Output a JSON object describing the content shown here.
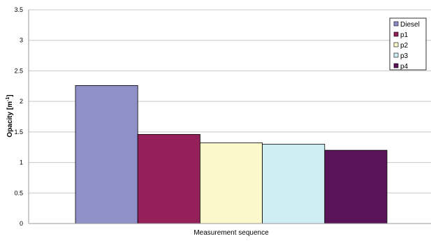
{
  "chart_data": {
    "type": "bar",
    "title": "",
    "xlabel": "Measurement sequence",
    "ylabel": {
      "main": "Opacity [m",
      "sup": "-1",
      "close": "]"
    },
    "ylim": [
      0,
      3.5
    ],
    "yticks": [
      "0",
      "0.5",
      "1",
      "1.5",
      "2",
      "2.5",
      "3",
      "3.5"
    ],
    "grid": true,
    "legend_position": "top-right",
    "series": [
      {
        "name": "Diesel",
        "values": [
          2.26
        ],
        "color": "#9090C8"
      },
      {
        "name": "p1",
        "values": [
          1.46
        ],
        "color": "#932059"
      },
      {
        "name": "p2",
        "values": [
          1.32
        ],
        "color": "#FBF8CC"
      },
      {
        "name": "p3",
        "values": [
          1.3
        ],
        "color": "#CFEEF3"
      },
      {
        "name": "p4",
        "values": [
          1.2
        ],
        "color": "#581456"
      }
    ]
  }
}
